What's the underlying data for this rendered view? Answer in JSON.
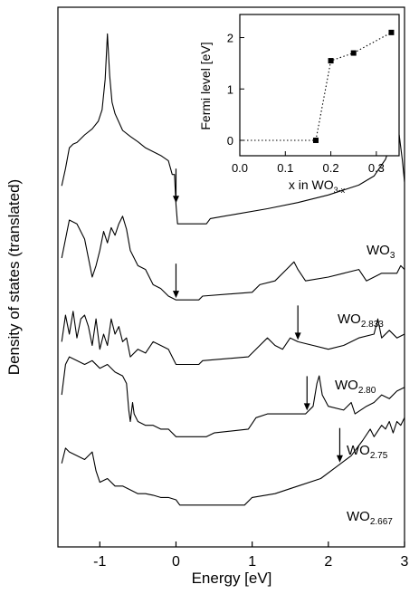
{
  "chart_data": [
    {
      "type": "line",
      "xlabel": "Energy  [eV]",
      "ylabel": "Density of states  (translated)",
      "xlim": [
        -1.55,
        3.0
      ],
      "xticks": [
        "-1",
        "0",
        "1",
        "2",
        "3"
      ],
      "xtick_values": [
        -1,
        0,
        1,
        2,
        3
      ],
      "y_ticks_shown": false,
      "grid": false,
      "series": [
        {
          "name": "WO3",
          "label_main": "WO",
          "label_sub": "3",
          "fermi_arrow_x": 0.0,
          "points": [
            [
              -1.5,
              5.05
            ],
            [
              -1.45,
              5.28
            ],
            [
              -1.4,
              5.55
            ],
            [
              -1.35,
              5.6
            ],
            [
              -1.3,
              5.62
            ],
            [
              -1.2,
              5.72
            ],
            [
              -1.1,
              5.8
            ],
            [
              -1.02,
              5.9
            ],
            [
              -0.97,
              6.05
            ],
            [
              -0.93,
              6.45
            ],
            [
              -0.9,
              7.05
            ],
            [
              -0.87,
              6.5
            ],
            [
              -0.84,
              6.15
            ],
            [
              -0.8,
              6.0
            ],
            [
              -0.7,
              5.78
            ],
            [
              -0.6,
              5.7
            ],
            [
              -0.5,
              5.63
            ],
            [
              -0.4,
              5.55
            ],
            [
              -0.3,
              5.5
            ],
            [
              -0.2,
              5.45
            ],
            [
              -0.1,
              5.38
            ],
            [
              -0.05,
              5.2
            ],
            [
              -0.02,
              5.2
            ],
            [
              0.0,
              4.8
            ],
            [
              0.02,
              4.55
            ],
            [
              0.4,
              4.55
            ],
            [
              0.45,
              4.62
            ],
            [
              0.8,
              4.68
            ],
            [
              1.2,
              4.75
            ],
            [
              1.6,
              4.83
            ],
            [
              2.0,
              4.93
            ],
            [
              2.4,
              5.06
            ],
            [
              2.6,
              5.18
            ],
            [
              2.75,
              5.4
            ],
            [
              2.82,
              5.6
            ],
            [
              2.86,
              5.72
            ],
            [
              2.9,
              5.8
            ],
            [
              2.93,
              5.72
            ],
            [
              2.97,
              5.4
            ],
            [
              3.0,
              5.1
            ]
          ]
        },
        {
          "name": "WO2.833",
          "label_main": "WO",
          "label_sub": "2.833",
          "fermi_arrow_x": 0.0,
          "points": [
            [
              -1.5,
              4.1
            ],
            [
              -1.4,
              4.6
            ],
            [
              -1.3,
              4.55
            ],
            [
              -1.2,
              4.35
            ],
            [
              -1.15,
              4.1
            ],
            [
              -1.1,
              3.85
            ],
            [
              -1.05,
              4.0
            ],
            [
              -1.0,
              4.2
            ],
            [
              -0.95,
              4.45
            ],
            [
              -0.9,
              4.3
            ],
            [
              -0.85,
              4.5
            ],
            [
              -0.8,
              4.4
            ],
            [
              -0.75,
              4.55
            ],
            [
              -0.7,
              4.65
            ],
            [
              -0.65,
              4.48
            ],
            [
              -0.6,
              4.2
            ],
            [
              -0.5,
              4.0
            ],
            [
              -0.4,
              3.95
            ],
            [
              -0.3,
              3.75
            ],
            [
              -0.2,
              3.7
            ],
            [
              -0.1,
              3.6
            ],
            [
              0.0,
              3.55
            ],
            [
              0.3,
              3.55
            ],
            [
              0.35,
              3.6
            ],
            [
              1.0,
              3.65
            ],
            [
              1.1,
              3.75
            ],
            [
              1.3,
              3.8
            ],
            [
              1.45,
              3.95
            ],
            [
              1.55,
              4.05
            ],
            [
              1.6,
              3.95
            ],
            [
              1.7,
              3.8
            ],
            [
              2.0,
              3.85
            ],
            [
              2.2,
              3.9
            ],
            [
              2.4,
              3.95
            ],
            [
              2.5,
              3.8
            ],
            [
              2.6,
              3.85
            ],
            [
              2.7,
              3.9
            ],
            [
              2.9,
              3.9
            ],
            [
              2.95,
              4.0
            ],
            [
              3.0,
              3.95
            ]
          ]
        },
        {
          "name": "WO2.80",
          "label_main": "WO",
          "label_sub": "2.80",
          "fermi_arrow_x": 1.6,
          "points": [
            [
              -1.5,
              3.0
            ],
            [
              -1.45,
              3.35
            ],
            [
              -1.4,
              3.1
            ],
            [
              -1.35,
              3.4
            ],
            [
              -1.3,
              3.05
            ],
            [
              -1.25,
              3.3
            ],
            [
              -1.2,
              3.35
            ],
            [
              -1.15,
              3.2
            ],
            [
              -1.1,
              2.95
            ],
            [
              -1.05,
              3.3
            ],
            [
              -1.0,
              2.9
            ],
            [
              -0.95,
              3.1
            ],
            [
              -0.9,
              2.95
            ],
            [
              -0.85,
              3.3
            ],
            [
              -0.8,
              3.1
            ],
            [
              -0.75,
              3.2
            ],
            [
              -0.7,
              3.0
            ],
            [
              -0.65,
              3.05
            ],
            [
              -0.6,
              2.8
            ],
            [
              -0.5,
              2.9
            ],
            [
              -0.4,
              2.85
            ],
            [
              -0.3,
              3.0
            ],
            [
              -0.2,
              2.95
            ],
            [
              -0.1,
              2.9
            ],
            [
              0.0,
              2.7
            ],
            [
              0.3,
              2.7
            ],
            [
              0.35,
              2.75
            ],
            [
              0.95,
              2.8
            ],
            [
              1.1,
              2.95
            ],
            [
              1.2,
              3.05
            ],
            [
              1.3,
              2.95
            ],
            [
              1.4,
              2.9
            ],
            [
              1.5,
              3.05
            ],
            [
              1.6,
              3.0
            ],
            [
              1.8,
              2.95
            ],
            [
              2.0,
              2.9
            ],
            [
              2.2,
              2.95
            ],
            [
              2.4,
              3.05
            ],
            [
              2.6,
              3.1
            ],
            [
              2.65,
              3.3
            ],
            [
              2.7,
              3.05
            ],
            [
              2.8,
              3.15
            ],
            [
              2.9,
              3.05
            ],
            [
              3.0,
              3.1
            ]
          ]
        },
        {
          "name": "WO2.75",
          "label_main": "WO",
          "label_sub": "2.75",
          "fermi_arrow_x": 1.72,
          "points": [
            [
              -1.5,
              2.3
            ],
            [
              -1.45,
              2.7
            ],
            [
              -1.4,
              2.8
            ],
            [
              -1.3,
              2.75
            ],
            [
              -1.2,
              2.7
            ],
            [
              -1.1,
              2.75
            ],
            [
              -1.0,
              2.65
            ],
            [
              -0.9,
              2.7
            ],
            [
              -0.8,
              2.6
            ],
            [
              -0.7,
              2.55
            ],
            [
              -0.65,
              2.45
            ],
            [
              -0.62,
              2.1
            ],
            [
              -0.6,
              1.95
            ],
            [
              -0.57,
              2.2
            ],
            [
              -0.55,
              2.05
            ],
            [
              -0.5,
              1.95
            ],
            [
              -0.4,
              1.9
            ],
            [
              -0.3,
              1.9
            ],
            [
              -0.2,
              1.85
            ],
            [
              -0.1,
              1.85
            ],
            [
              0.0,
              1.75
            ],
            [
              0.4,
              1.75
            ],
            [
              0.5,
              1.8
            ],
            [
              0.95,
              1.85
            ],
            [
              1.05,
              2.0
            ],
            [
              1.2,
              2.05
            ],
            [
              1.5,
              2.05
            ],
            [
              1.7,
              2.05
            ],
            [
              1.8,
              2.15
            ],
            [
              1.85,
              2.45
            ],
            [
              1.88,
              2.55
            ],
            [
              1.92,
              2.3
            ],
            [
              2.0,
              2.15
            ],
            [
              2.2,
              2.1
            ],
            [
              2.3,
              2.2
            ],
            [
              2.35,
              2.05
            ],
            [
              2.5,
              2.15
            ],
            [
              2.6,
              2.2
            ],
            [
              2.7,
              2.3
            ],
            [
              2.8,
              2.25
            ],
            [
              2.9,
              2.35
            ],
            [
              3.0,
              2.4
            ]
          ]
        },
        {
          "name": "WO2.667",
          "label_main": "WO",
          "label_sub": "2.667",
          "fermi_arrow_x": 2.15,
          "points": [
            [
              -1.5,
              1.4
            ],
            [
              -1.45,
              1.6
            ],
            [
              -1.4,
              1.55
            ],
            [
              -1.3,
              1.5
            ],
            [
              -1.2,
              1.45
            ],
            [
              -1.1,
              1.55
            ],
            [
              -1.05,
              1.3
            ],
            [
              -1.0,
              1.15
            ],
            [
              -0.9,
              1.2
            ],
            [
              -0.8,
              1.1
            ],
            [
              -0.7,
              1.1
            ],
            [
              -0.6,
              1.05
            ],
            [
              -0.5,
              1.0
            ],
            [
              -0.4,
              1.0
            ],
            [
              -0.3,
              0.98
            ],
            [
              -0.2,
              0.95
            ],
            [
              -0.1,
              0.95
            ],
            [
              0.0,
              0.92
            ],
            [
              0.05,
              0.85
            ],
            [
              0.9,
              0.85
            ],
            [
              1.0,
              0.95
            ],
            [
              1.3,
              1.0
            ],
            [
              1.6,
              1.1
            ],
            [
              1.9,
              1.2
            ],
            [
              2.1,
              1.35
            ],
            [
              2.3,
              1.5
            ],
            [
              2.45,
              1.7
            ],
            [
              2.55,
              1.85
            ],
            [
              2.6,
              1.75
            ],
            [
              2.7,
              1.9
            ],
            [
              2.75,
              1.85
            ],
            [
              2.8,
              1.95
            ],
            [
              2.85,
              1.8
            ],
            [
              2.9,
              1.95
            ],
            [
              2.95,
              1.9
            ],
            [
              3.0,
              2.0
            ]
          ]
        }
      ]
    },
    {
      "type": "scatter",
      "xlabel_main": "x in WO",
      "xlabel_sub": "3-x",
      "ylabel": "Fermi level  [eV]",
      "xlim": [
        0.0,
        0.35
      ],
      "ylim": [
        -0.3,
        2.45
      ],
      "xticks": [
        "0.0",
        "0.1",
        "0.2",
        "0.3"
      ],
      "xtick_values": [
        0.0,
        0.1,
        0.2,
        0.3
      ],
      "yticks": [
        "0",
        "1",
        "2"
      ],
      "ytick_values": [
        0,
        1,
        2
      ],
      "grid": false,
      "line_style": "dotted",
      "x": [
        0.0,
        0.167,
        0.2,
        0.25,
        0.333
      ],
      "y": [
        0.0,
        0.0,
        1.55,
        1.7,
        2.1
      ],
      "marker_from_index": 1
    }
  ]
}
